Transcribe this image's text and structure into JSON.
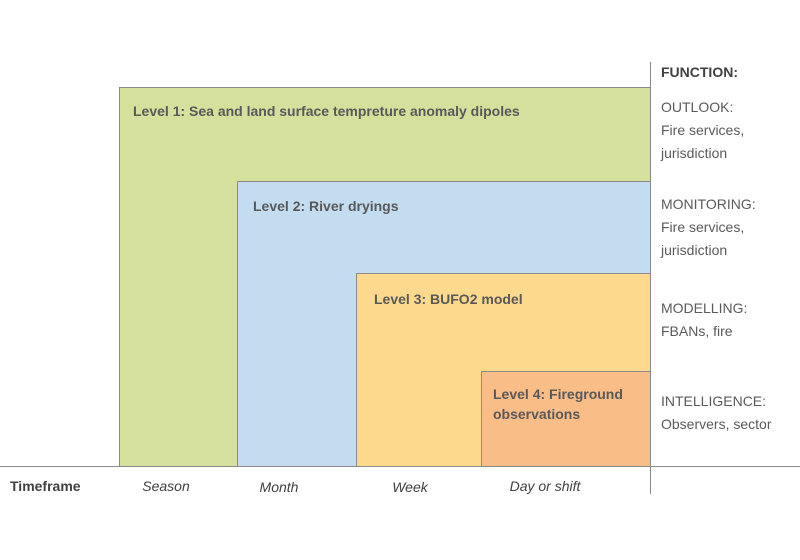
{
  "levels": [
    {
      "label": "Level 1: Sea and land surface tempreture anomaly dipoles",
      "color": "#d4e09b"
    },
    {
      "label": "Level 2: River dryings",
      "color": "#c4dcf0"
    },
    {
      "label": "Level 3: BUFO2 model",
      "color": "#fcd98c"
    },
    {
      "label": "Level 4: Fireground observations",
      "color": "#f9bd88"
    }
  ],
  "timeframe": {
    "label": "Timeframe",
    "ticks": [
      "Season",
      "Month",
      "Week",
      "Day or shift"
    ]
  },
  "function": {
    "header": "FUNCTION:",
    "items": [
      {
        "title": "OUTLOOK:",
        "line1": "Fire services,",
        "line2": "jurisdiction"
      },
      {
        "title": "MONITORING:",
        "line1": "Fire services,",
        "line2": "jurisdiction"
      },
      {
        "title": "MODELLING:",
        "line1": "FBANs, fire",
        "line2": ""
      },
      {
        "title": "INTELLIGENCE:",
        "line1": "Observers, sector",
        "line2": ""
      }
    ]
  }
}
